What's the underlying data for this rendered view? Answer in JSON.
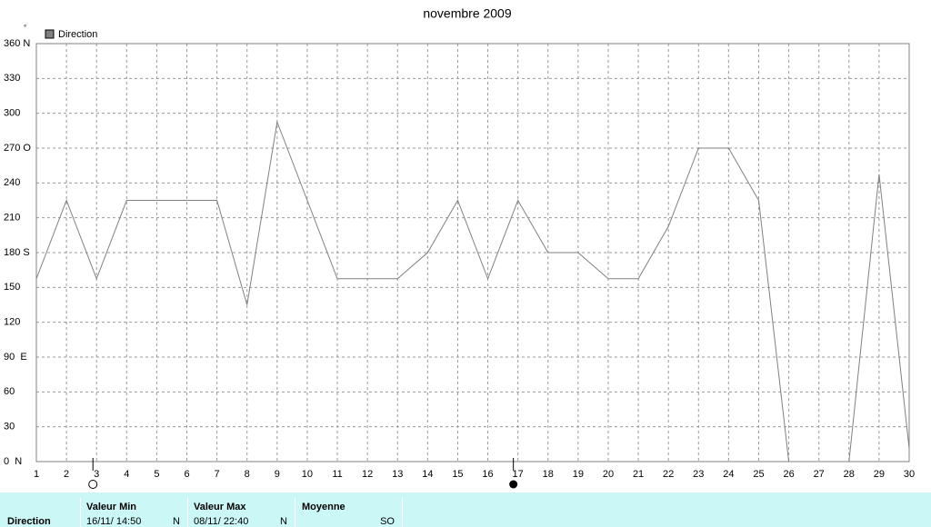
{
  "chart_data": {
    "type": "line",
    "title": "novembre 2009",
    "y_unit": "°",
    "x": [
      1,
      2,
      3,
      4,
      5,
      6,
      7,
      8,
      9,
      10,
      11,
      12,
      13,
      14,
      15,
      16,
      17,
      18,
      19,
      20,
      21,
      22,
      23,
      24,
      25,
      26,
      27,
      28,
      29,
      30
    ],
    "series": [
      {
        "name": "Direction",
        "color": "#808080",
        "values": [
          157.5,
          225,
          157.5,
          225,
          225,
          225,
          225,
          135,
          292.5,
          225,
          157.5,
          157.5,
          157.5,
          180,
          225,
          157.5,
          225,
          180,
          180,
          157.5,
          157.5,
          202.5,
          270,
          270,
          225,
          0,
          0,
          0,
          247.5,
          11.25
        ]
      }
    ],
    "xlim": [
      1,
      30
    ],
    "xticks": [
      1,
      2,
      3,
      4,
      5,
      6,
      7,
      8,
      9,
      10,
      11,
      12,
      13,
      14,
      15,
      16,
      17,
      18,
      19,
      20,
      21,
      22,
      23,
      24,
      25,
      26,
      27,
      28,
      29,
      30
    ],
    "ylim": [
      0,
      360
    ],
    "yticks": [
      {
        "value": 0,
        "label": "0  N"
      },
      30,
      60,
      {
        "value": 90,
        "label": "90  E"
      },
      120,
      150,
      {
        "value": 180,
        "label": "180 S"
      },
      210,
      240,
      {
        "value": 270,
        "label": "270 O"
      },
      300,
      330,
      {
        "value": 360,
        "label": "360 N"
      }
    ],
    "grid": true
  },
  "summary": {
    "label": "Direction",
    "columns": [
      {
        "header": "Valeur Min",
        "value": "16/11/  14:50",
        "dir": "N"
      },
      {
        "header": "Valeur Max",
        "value": "08/11/  22:40",
        "dir": "N"
      },
      {
        "header": "Moyenne",
        "value": "",
        "dir": "SO"
      }
    ]
  }
}
